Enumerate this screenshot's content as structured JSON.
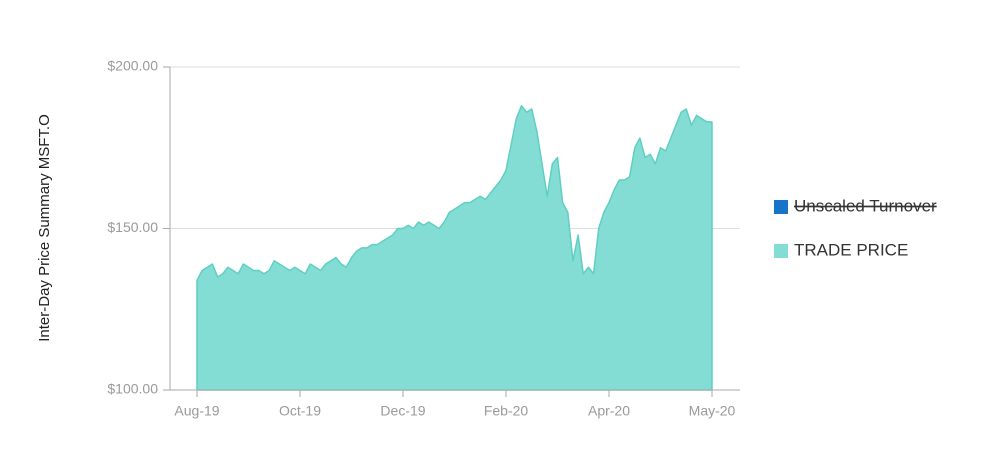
{
  "chart_data": {
    "type": "area",
    "y_label": "Inter-Day Price Summary MSFT.O",
    "categories": [
      "Aug-19",
      null,
      null,
      null,
      null,
      null,
      null,
      null,
      null,
      null,
      null,
      null,
      null,
      null,
      null,
      null,
      null,
      null,
      null,
      null,
      "Oct-19",
      null,
      null,
      null,
      null,
      null,
      null,
      null,
      null,
      null,
      null,
      null,
      null,
      null,
      null,
      null,
      null,
      null,
      null,
      null,
      "Dec-19",
      null,
      null,
      null,
      null,
      null,
      null,
      null,
      null,
      null,
      null,
      null,
      null,
      null,
      null,
      null,
      null,
      null,
      null,
      null,
      "Feb-20",
      null,
      null,
      null,
      null,
      null,
      null,
      null,
      null,
      null,
      null,
      null,
      null,
      null,
      null,
      null,
      null,
      null,
      null,
      null,
      "Apr-20",
      null,
      null,
      null,
      null,
      null,
      null,
      null,
      null,
      null,
      null,
      null,
      null,
      null,
      null,
      null,
      null,
      null,
      null,
      null,
      "May-20"
    ],
    "series": [
      {
        "name": "Unscaled Turnover",
        "color": "#1874c8",
        "hidden": true
      },
      {
        "name": "TRADE PRICE",
        "color": "#84ddd4",
        "line_color": "#5fcfc2",
        "values": [
          134,
          137,
          138,
          139,
          135,
          136,
          138,
          137,
          136,
          139,
          138,
          137,
          137,
          136,
          137,
          140,
          139,
          138,
          137,
          138,
          137,
          136,
          139,
          138,
          137,
          139,
          140,
          141,
          139,
          138,
          141,
          143,
          144,
          144,
          145,
          145,
          146,
          147,
          148,
          150,
          150,
          151,
          150,
          152,
          151,
          152,
          151,
          150,
          152,
          155,
          156,
          157,
          158,
          158,
          159,
          160,
          159,
          161,
          163,
          165,
          168,
          176,
          184,
          188,
          186,
          187,
          180,
          170,
          160,
          170,
          172,
          158,
          155,
          140,
          148,
          136,
          138,
          136,
          150,
          155,
          158,
          162,
          165,
          165,
          166,
          175,
          178,
          172,
          173,
          170,
          175,
          174,
          178,
          182,
          186,
          187,
          182,
          185,
          184,
          183,
          183
        ]
      }
    ],
    "ylim": [
      100,
      200
    ],
    "yticks": [
      {
        "value": 100,
        "label": "$100.00"
      },
      {
        "value": 150,
        "label": "$150.00"
      },
      {
        "value": 200,
        "label": "$200.00"
      }
    ],
    "grid": true,
    "legend": "right"
  }
}
